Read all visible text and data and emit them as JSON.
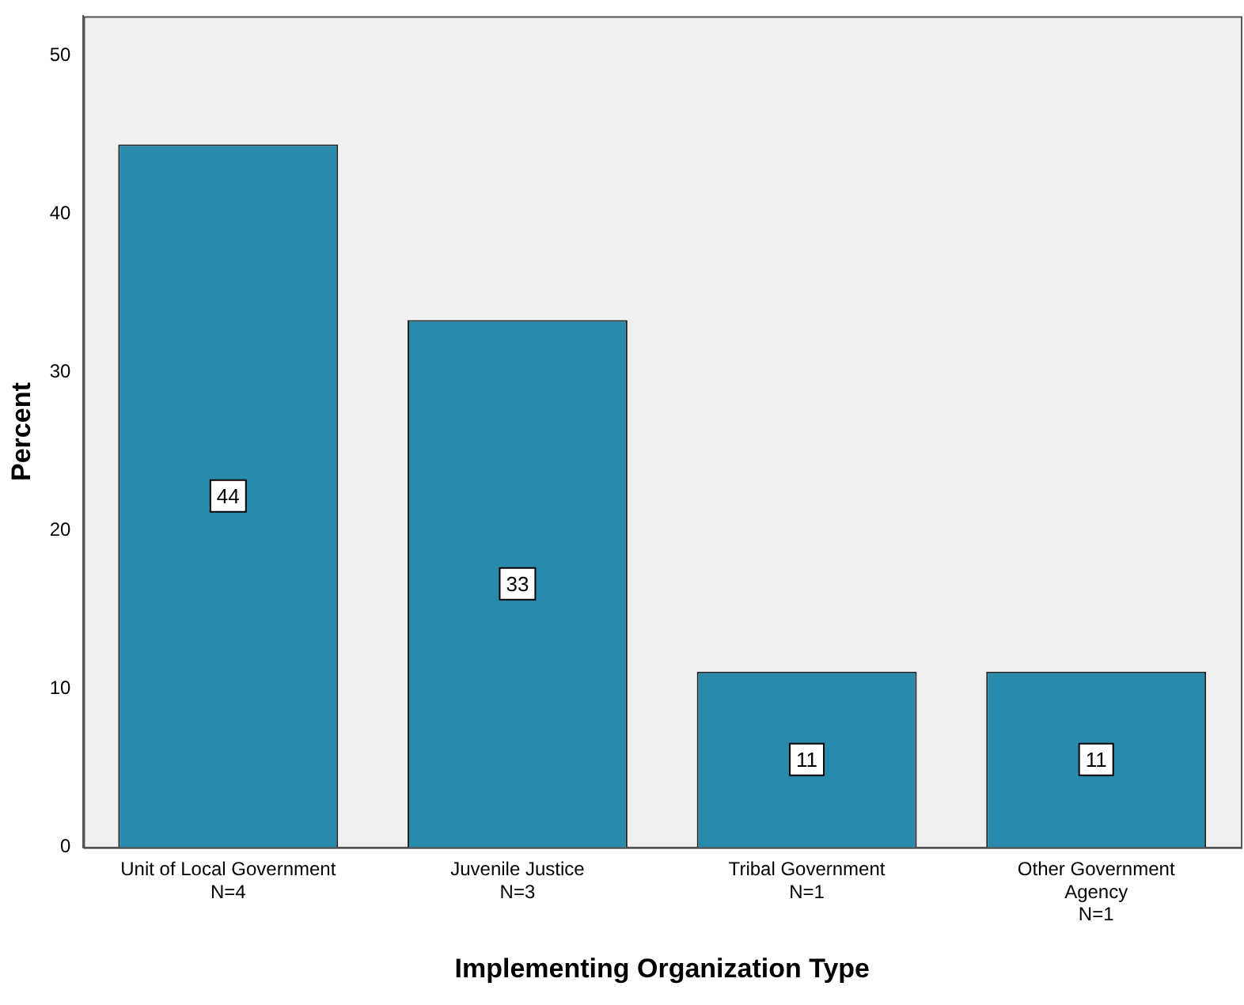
{
  "chart_data": {
    "type": "bar",
    "xlabel": "Implementing Organization Type",
    "ylabel": "Percent",
    "categories": [
      "Unit of Local Government\nN=4",
      "Juvenile Justice\nN=3",
      "Tribal Government\nN=1",
      "Other Government\nAgency\nN=1"
    ],
    "values": [
      44.4,
      33.3,
      11.1,
      11.1
    ],
    "value_labels": [
      "44",
      "33",
      "11",
      "11"
    ],
    "color": "#2a8aab",
    "ylim": [
      0,
      52.5
    ],
    "yticks": [
      0,
      10,
      20,
      30,
      40,
      50
    ],
    "grid": false,
    "legend": false
  }
}
